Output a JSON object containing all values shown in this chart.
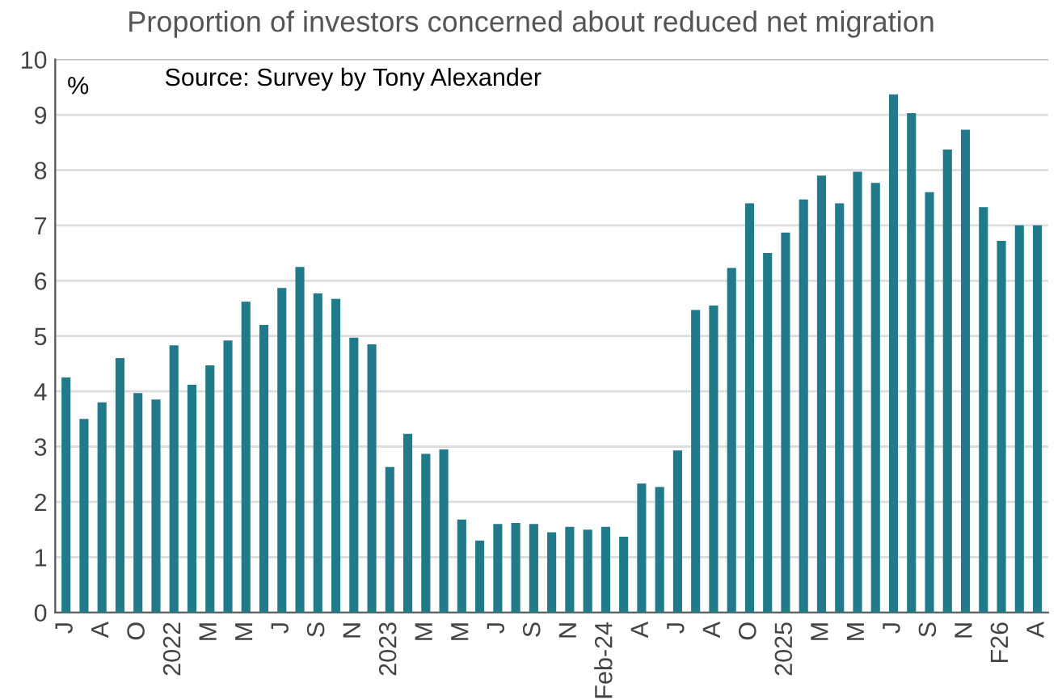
{
  "chart_data": {
    "type": "bar",
    "title": "Proportion of investors concerned about reduced net migration",
    "ylabel": "%",
    "annotations": [
      "Source: Survey by Tony Alexander"
    ],
    "categories": [
      "J",
      null,
      "A",
      null,
      "O",
      null,
      "2022",
      null,
      "M",
      null,
      "M",
      null,
      "J",
      null,
      "S",
      null,
      "N",
      null,
      "2023",
      null,
      "M",
      null,
      "M",
      null,
      "J",
      null,
      "S",
      null,
      "N",
      null,
      "Feb-24",
      null,
      "A",
      null,
      "J",
      null,
      "A",
      null,
      "O",
      null,
      "2025",
      null,
      "M",
      null,
      "M",
      null,
      "J",
      null,
      "S",
      null,
      "N",
      null,
      "F26",
      null,
      "A"
    ],
    "values": [
      4.25,
      3.5,
      3.8,
      4.6,
      3.97,
      3.85,
      4.83,
      4.12,
      4.47,
      4.92,
      5.62,
      5.2,
      5.87,
      6.25,
      5.77,
      5.67,
      4.97,
      4.85,
      2.63,
      3.23,
      2.87,
      2.95,
      1.68,
      1.3,
      1.6,
      1.62,
      1.6,
      1.45,
      1.55,
      1.5,
      1.55,
      1.37,
      2.33,
      2.27,
      2.93,
      5.47,
      5.55,
      6.23,
      7.4,
      6.5,
      6.87,
      7.47,
      7.9,
      7.4,
      7.97,
      7.77,
      9.37,
      9.03,
      7.6,
      8.37,
      8.73,
      7.33,
      6.72,
      7.0,
      7.0
    ],
    "color": "#217a8a",
    "ylim": [
      0,
      10
    ],
    "yticks": [
      0,
      1,
      2,
      3,
      4,
      5,
      6,
      7,
      8,
      9,
      10
    ],
    "grid": "y"
  }
}
